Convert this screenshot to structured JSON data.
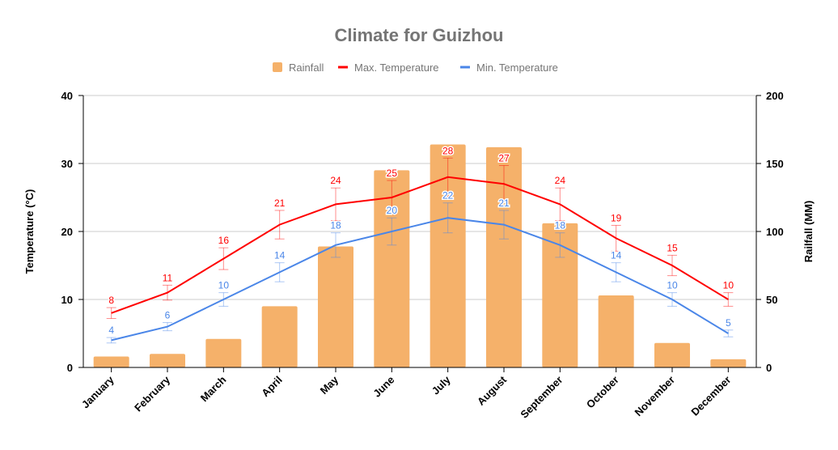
{
  "chart_data": {
    "type": "bar+line",
    "title": "Climate for Guizhou",
    "categories": [
      "January",
      "February",
      "March",
      "April",
      "May",
      "June",
      "July",
      "August",
      "September",
      "October",
      "November",
      "December"
    ],
    "y_left": {
      "label": "Temperature (°C)",
      "range": [
        0,
        40
      ],
      "ticks": [
        0,
        10,
        20,
        30,
        40
      ]
    },
    "y_right": {
      "label": "Railfall (MM)",
      "range": [
        0,
        200
      ],
      "ticks": [
        0,
        50,
        100,
        150,
        200
      ]
    },
    "grid": true,
    "legend_position": "top",
    "series": [
      {
        "name": "Rainfall",
        "type": "bar",
        "axis": "right",
        "color": "#F5B16A",
        "values": [
          8,
          10,
          21,
          45,
          89,
          145,
          164,
          162,
          106,
          53,
          18,
          6
        ]
      },
      {
        "name": "Max. Temperature",
        "type": "line",
        "axis": "left",
        "color": "#FF0000",
        "error_fraction": 0.1,
        "values": [
          8,
          11,
          16,
          21,
          24,
          25,
          28,
          27,
          24,
          19,
          15,
          10
        ]
      },
      {
        "name": "Min. Temperature",
        "type": "line",
        "axis": "left",
        "color": "#4A86E8",
        "error_fraction": 0.1,
        "values": [
          4,
          6,
          10,
          14,
          18,
          20,
          22,
          21,
          18,
          14,
          10,
          5
        ]
      }
    ]
  }
}
